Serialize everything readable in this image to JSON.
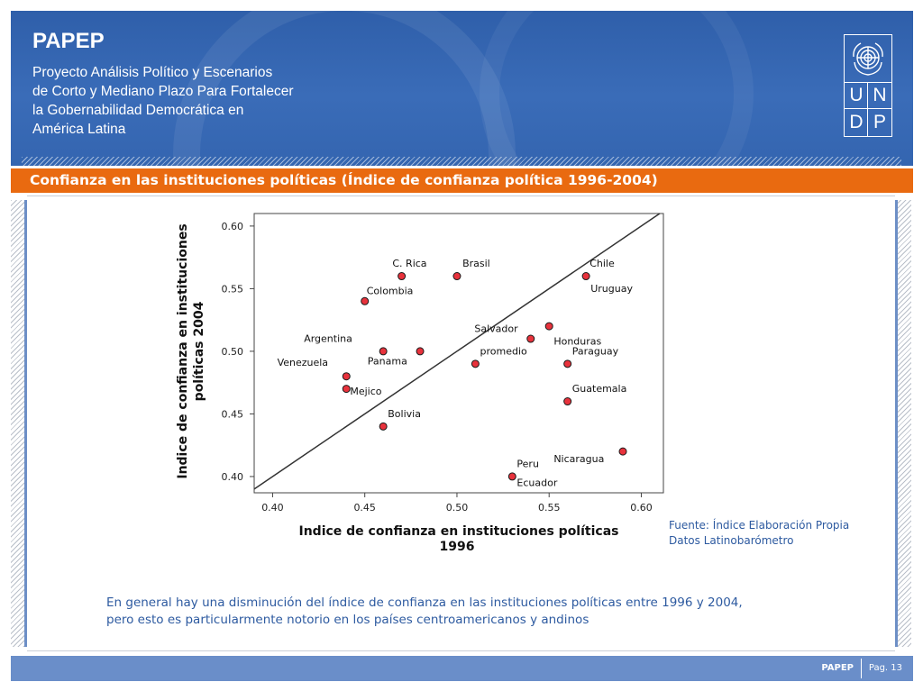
{
  "header": {
    "brand": "PAPEP",
    "subtitle_lines": [
      "Proyecto Análisis Político y Escenarios",
      "de Corto y Mediano Plazo Para Fortalecer",
      "la Gobernabilidad Democrática en",
      "América Latina"
    ],
    "logo": {
      "letters": [
        "U",
        "N",
        "D",
        "P"
      ],
      "emblem_icon": "un-emblem-icon"
    }
  },
  "slide": {
    "title": "Confianza en las instituciones políticas (Índice de confianza política 1996-2004)"
  },
  "chart_data": {
    "type": "scatter",
    "title": "",
    "xlabel_lines": [
      "Indice de confianza en instituciones políticas",
      "1996"
    ],
    "ylabel_lines": [
      "Indice de confianza en instituciones",
      "políticas  2004"
    ],
    "xlim": [
      0.39,
      0.612
    ],
    "ylim": [
      0.387,
      0.61
    ],
    "xticks": [
      "0.40",
      "0.45",
      "0.50",
      "0.55",
      "0.60"
    ],
    "yticks": [
      "0.40",
      "0.45",
      "0.50",
      "0.55",
      "0.60"
    ],
    "reference_line": "y = x",
    "grid": false,
    "points": [
      {
        "x": 0.47,
        "y": 0.56
      },
      {
        "x": 0.5,
        "y": 0.56
      },
      {
        "x": 0.45,
        "y": 0.54
      },
      {
        "x": 0.57,
        "y": 0.56
      },
      {
        "x": 0.55,
        "y": 0.52
      },
      {
        "x": 0.54,
        "y": 0.51
      },
      {
        "x": 0.46,
        "y": 0.5
      },
      {
        "x": 0.48,
        "y": 0.5
      },
      {
        "x": 0.51,
        "y": 0.49
      },
      {
        "x": 0.56,
        "y": 0.49
      },
      {
        "x": 0.44,
        "y": 0.48
      },
      {
        "x": 0.44,
        "y": 0.47
      },
      {
        "x": 0.56,
        "y": 0.46
      },
      {
        "x": 0.46,
        "y": 0.44
      },
      {
        "x": 0.59,
        "y": 0.42
      },
      {
        "x": 0.53,
        "y": 0.4
      }
    ],
    "point_labels": [
      {
        "text": "C. Rica",
        "x": 0.465,
        "y": 0.5675
      },
      {
        "text": "Brasil",
        "x": 0.503,
        "y": 0.5675
      },
      {
        "text": "Colombia",
        "x": 0.451,
        "y": 0.5455
      },
      {
        "text": "Chile",
        "x": 0.572,
        "y": 0.5675
      },
      {
        "text": "Uruguay",
        "x": 0.5725,
        "y": 0.5475
      },
      {
        "text": "Salvador",
        "x": 0.5095,
        "y": 0.5155
      },
      {
        "text": "Honduras",
        "x": 0.5525,
        "y": 0.5055
      },
      {
        "text": "Argentina",
        "x": 0.417,
        "y": 0.5075
      },
      {
        "text": "Panama",
        "x": 0.4515,
        "y": 0.4895
      },
      {
        "text": "promedio",
        "x": 0.5125,
        "y": 0.4975
      },
      {
        "text": "Paraguay",
        "x": 0.5625,
        "y": 0.4975
      },
      {
        "text": "Venezuela",
        "x": 0.4025,
        "y": 0.4885
      },
      {
        "text": "Mejico",
        "x": 0.442,
        "y": 0.4655
      },
      {
        "text": "Guatemala",
        "x": 0.5625,
        "y": 0.4675
      },
      {
        "text": "Bolivia",
        "x": 0.4625,
        "y": 0.4475
      },
      {
        "text": "Nicaragua",
        "x": 0.5525,
        "y": 0.4115
      },
      {
        "text": "Peru",
        "x": 0.5325,
        "y": 0.4075
      },
      {
        "text": "Ecuador",
        "x": 0.5325,
        "y": 0.3925
      }
    ],
    "marker_fill": "#e8323c",
    "marker_stroke": "#1a1a1a"
  },
  "source_lines": [
    "Fuente:  Índice Elaboración Propia",
    "Datos Latinobarómetro"
  ],
  "caption_lines": [
    "En general hay una disminución del índice de confianza en las instituciones políticas entre 1996 y 2004,",
    "pero esto es particularmente notorio en los países centroamericanos y andinos"
  ],
  "footer": {
    "brand": "PAPEP",
    "page": "Pag. 13"
  },
  "colors": {
    "header_blue": "#3465b0",
    "title_orange": "#e96a10",
    "footer_blue": "#6a8ec9",
    "text_blue": "#2d5aa0"
  }
}
